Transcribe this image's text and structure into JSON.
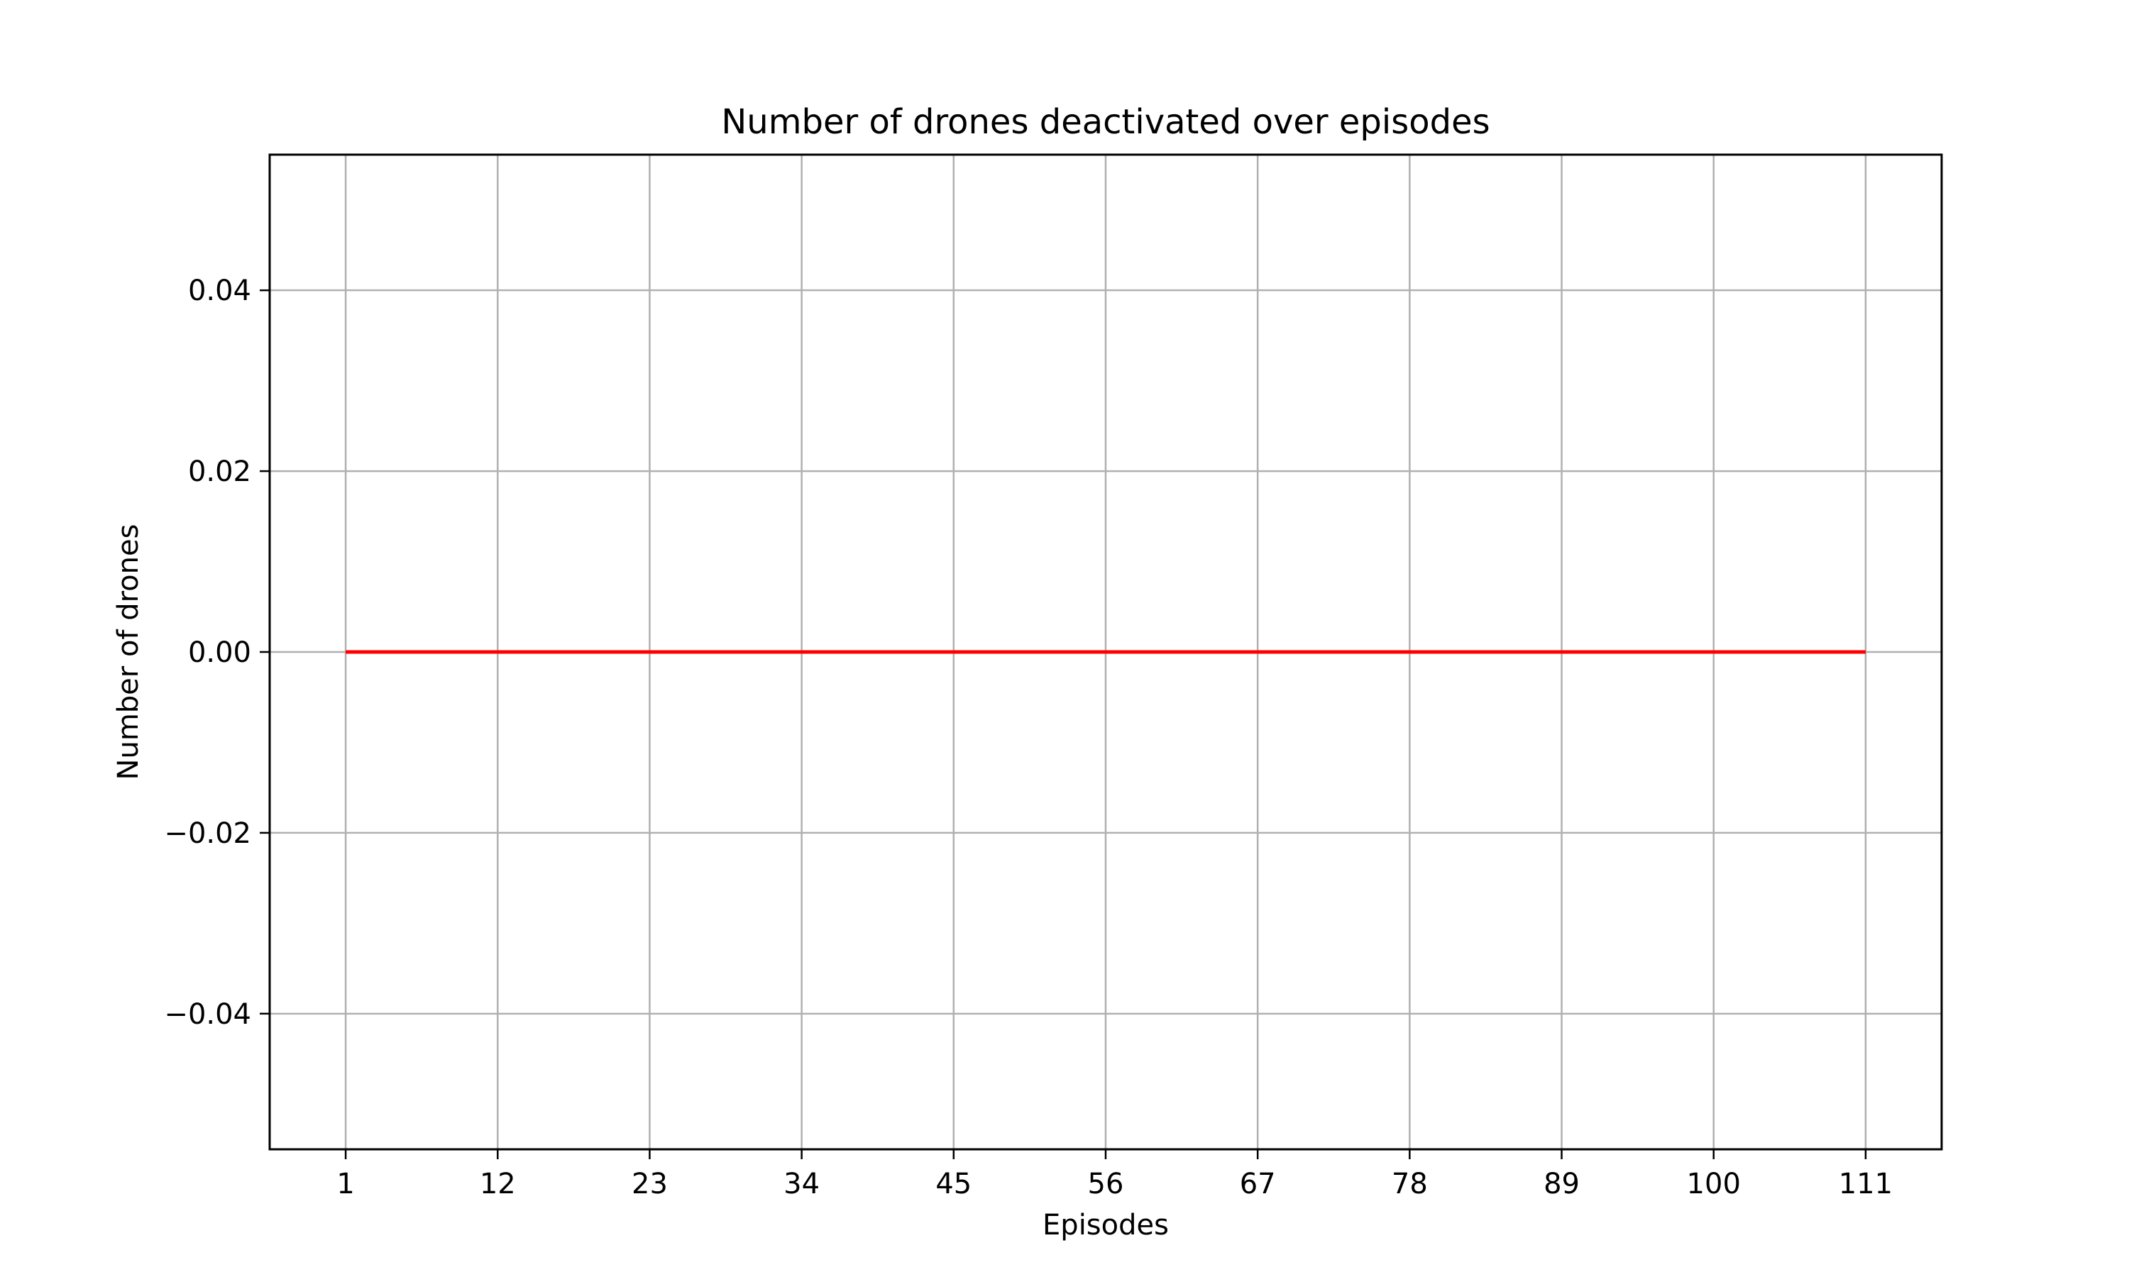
{
  "chart_data": {
    "type": "line",
    "title": "Number of drones deactivated over episodes",
    "xlabel": "Episodes",
    "ylabel": "Number of drones",
    "xlim": [
      -4.5,
      116.5
    ],
    "ylim": [
      -0.055,
      0.055
    ],
    "x_ticks": [
      1,
      12,
      23,
      34,
      45,
      56,
      67,
      78,
      89,
      100,
      111
    ],
    "y_ticks": [
      -0.04,
      -0.02,
      0.0,
      0.02,
      0.04
    ],
    "y_tick_labels": [
      "−0.04",
      "−0.02",
      "0.00",
      "0.02",
      "0.04"
    ],
    "grid": true,
    "series": [
      {
        "color": "#ff0000",
        "x": [
          1,
          111
        ],
        "y": [
          0,
          0
        ]
      }
    ]
  }
}
